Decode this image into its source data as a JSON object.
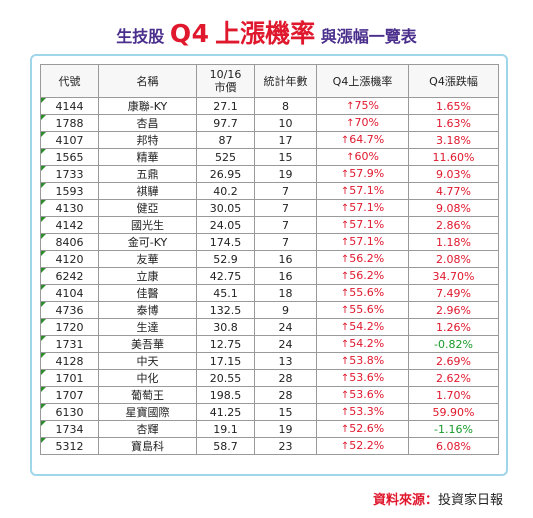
{
  "title": {
    "prefix": "生技股",
    "highlight_a": "Q4",
    "highlight_b": "上漲機率",
    "suffix": "與漲幅一覽表"
  },
  "table": {
    "headers": [
      "代號",
      "名稱",
      "10/16\n市價",
      "統計年數",
      "Q4上漲機率",
      "Q4漲跌幅"
    ],
    "rows": [
      {
        "code": "4144",
        "name": "康聯-KY",
        "price": "27.1",
        "years": "8",
        "prob": "75%",
        "chg": "1.65%"
      },
      {
        "code": "1788",
        "name": "杏昌",
        "price": "97.7",
        "years": "10",
        "prob": "70%",
        "chg": "1.63%"
      },
      {
        "code": "4107",
        "name": "邦特",
        "price": "87",
        "years": "17",
        "prob": "64.7%",
        "chg": "3.18%"
      },
      {
        "code": "1565",
        "name": "精華",
        "price": "525",
        "years": "15",
        "prob": "60%",
        "chg": "11.60%"
      },
      {
        "code": "1733",
        "name": "五鼎",
        "price": "26.95",
        "years": "19",
        "prob": "57.9%",
        "chg": "9.03%"
      },
      {
        "code": "1593",
        "name": "祺驊",
        "price": "40.2",
        "years": "7",
        "prob": "57.1%",
        "chg": "4.77%"
      },
      {
        "code": "4130",
        "name": "健亞",
        "price": "30.05",
        "years": "7",
        "prob": "57.1%",
        "chg": "9.08%"
      },
      {
        "code": "4142",
        "name": "國光生",
        "price": "24.05",
        "years": "7",
        "prob": "57.1%",
        "chg": "2.86%"
      },
      {
        "code": "8406",
        "name": "金可-KY",
        "price": "174.5",
        "years": "7",
        "prob": "57.1%",
        "chg": "1.18%"
      },
      {
        "code": "4120",
        "name": "友華",
        "price": "52.9",
        "years": "16",
        "prob": "56.2%",
        "chg": "2.08%"
      },
      {
        "code": "6242",
        "name": "立康",
        "price": "42.75",
        "years": "16",
        "prob": "56.2%",
        "chg": "34.70%"
      },
      {
        "code": "4104",
        "name": "佳醫",
        "price": "45.1",
        "years": "18",
        "prob": "55.6%",
        "chg": "7.49%"
      },
      {
        "code": "4736",
        "name": "泰博",
        "price": "132.5",
        "years": "9",
        "prob": "55.6%",
        "chg": "2.96%"
      },
      {
        "code": "1720",
        "name": "生達",
        "price": "30.8",
        "years": "24",
        "prob": "54.2%",
        "chg": "1.26%"
      },
      {
        "code": "1731",
        "name": "美吾華",
        "price": "12.75",
        "years": "24",
        "prob": "54.2%",
        "chg": "-0.82%"
      },
      {
        "code": "4128",
        "name": "中天",
        "price": "17.15",
        "years": "13",
        "prob": "53.8%",
        "chg": "2.69%"
      },
      {
        "code": "1701",
        "name": "中化",
        "price": "20.55",
        "years": "28",
        "prob": "53.6%",
        "chg": "2.62%"
      },
      {
        "code": "1707",
        "name": "葡萄王",
        "price": "198.5",
        "years": "28",
        "prob": "53.6%",
        "chg": "1.70%"
      },
      {
        "code": "6130",
        "name": "星寶國際",
        "price": "41.25",
        "years": "15",
        "prob": "53.3%",
        "chg": "59.90%"
      },
      {
        "code": "1734",
        "name": "杏輝",
        "price": "19.1",
        "years": "19",
        "prob": "52.6%",
        "chg": "-1.16%"
      },
      {
        "code": "5312",
        "name": "寶島科",
        "price": "58.7",
        "years": "23",
        "prob": "52.2%",
        "chg": "6.08%"
      }
    ],
    "up_arrow": "↑",
    "colors": {
      "positive": "#e0182d",
      "negative": "#1a9a2a",
      "title": "#4a2f8c",
      "frame": "#9fd6ea"
    }
  },
  "source": {
    "label": "資料來源：",
    "value": "投資家日報"
  }
}
